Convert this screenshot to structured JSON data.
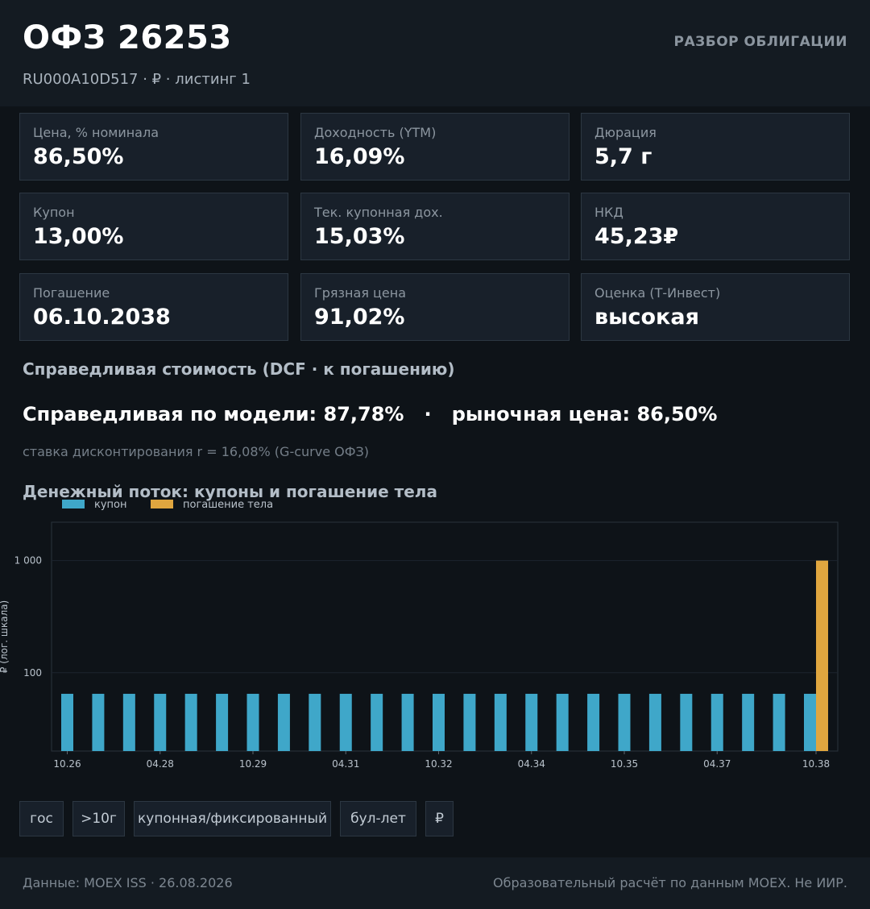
{
  "header": {
    "title": "ОФЗ 26253",
    "subtitle": "RU000A10D517  ·  ₽  ·  листинг 1",
    "tag": "РАЗБОР ОБЛИГАЦИИ"
  },
  "metrics": [
    {
      "label": "Цена, % номинала",
      "value": "86,50%"
    },
    {
      "label": "Доходность (YTM)",
      "value": "16,09%"
    },
    {
      "label": "Дюрация",
      "value": "5,7 г"
    },
    {
      "label": "Купон",
      "value": "13,00%"
    },
    {
      "label": "Тек. купонная дох.",
      "value": "15,03%"
    },
    {
      "label": "НКД",
      "value": "45,23₽"
    },
    {
      "label": "Погашение",
      "value": "06.10.2038"
    },
    {
      "label": "Грязная цена",
      "value": "91,02%"
    },
    {
      "label": "Оценка (Т-Инвест)",
      "value": "высокая"
    }
  ],
  "valuation": {
    "heading": "Справедливая стоимость (DCF · к погашению)",
    "fair_line": "Справедливая по модели: 87,78%   ·   рыночная цена: 86,50%",
    "note": "ставка дисконтирования r = 16,08% (G-curve ОФЗ)"
  },
  "cashflow_heading": "Денежный поток: купоны и погашение тела",
  "chart_data": {
    "type": "bar",
    "yscale": "log",
    "ylabel": "₽ (лог. шкала)",
    "xlabel": "",
    "ylim": [
      20,
      2200
    ],
    "yticks": [
      100,
      1000
    ],
    "ytick_labels": [
      "100",
      "1 000"
    ],
    "xticks": [
      "10.26",
      "04.28",
      "10.29",
      "04.31",
      "10.32",
      "04.34",
      "10.35",
      "04.37",
      "10.38"
    ],
    "legend_position": "top-left",
    "grid": true,
    "categories": [
      "10.26",
      "04.27",
      "10.27",
      "04.28",
      "10.28",
      "04.29",
      "10.29",
      "04.30",
      "10.30",
      "04.31",
      "10.31",
      "04.32",
      "10.32",
      "04.33",
      "10.33",
      "04.34",
      "10.34",
      "04.35",
      "10.35",
      "04.36",
      "10.36",
      "04.37",
      "10.37",
      "04.38",
      "10.38"
    ],
    "series": [
      {
        "name": "купон",
        "color": "#3fa7c9",
        "values": [
          64.82,
          64.82,
          64.82,
          64.82,
          64.82,
          64.82,
          64.82,
          64.82,
          64.82,
          64.82,
          64.82,
          64.82,
          64.82,
          64.82,
          64.82,
          64.82,
          64.82,
          64.82,
          64.82,
          64.82,
          64.82,
          64.82,
          64.82,
          64.82,
          64.82
        ]
      },
      {
        "name": "погашение тела",
        "color": "#e0a63f",
        "values": [
          0,
          0,
          0,
          0,
          0,
          0,
          0,
          0,
          0,
          0,
          0,
          0,
          0,
          0,
          0,
          0,
          0,
          0,
          0,
          0,
          0,
          0,
          0,
          0,
          1000
        ]
      }
    ]
  },
  "chips": [
    "гос",
    ">10г",
    "купонная/фиксированный",
    "бул-лет",
    "₽"
  ],
  "footer": {
    "left": "Данные: MOEX ISS · 26.08.2026",
    "right": "Образовательный расчёт по данным MOEX. Не ИИР."
  }
}
